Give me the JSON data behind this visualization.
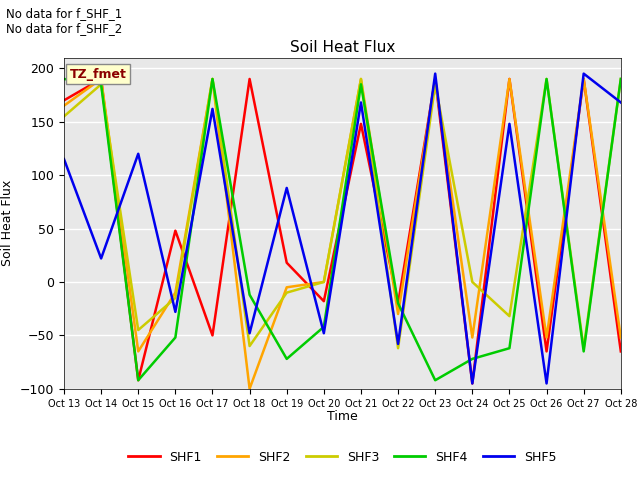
{
  "title": "Soil Heat Flux",
  "ylabel": "Soil Heat Flux",
  "xlabel": "Time",
  "annotations": [
    "No data for f_SHF_1",
    "No data for f_SHF_2"
  ],
  "legend_label": "TZ_fmet",
  "ylim": [
    -100,
    210
  ],
  "yticks": [
    -100,
    -50,
    0,
    50,
    100,
    150,
    200
  ],
  "colors": {
    "SHF1": "#FF0000",
    "SHF2": "#FFA500",
    "SHF3": "#CCCC00",
    "SHF4": "#00CC00",
    "SHF5": "#0000EE"
  },
  "x_labels": [
    "Oct 13",
    "Oct 14",
    "Oct 15",
    "Oct 16",
    "Oct 17",
    "Oct 18",
    "Oct 19",
    "Oct 20",
    "Oct 21",
    "Oct 22",
    "Oct 23",
    "Oct 24",
    "Oct 25",
    "Oct 26",
    "Oct 27",
    "Oct 28"
  ],
  "x_values": [
    13,
    14,
    15,
    16,
    17,
    18,
    19,
    20,
    21,
    22,
    23,
    24,
    25,
    26,
    27,
    28
  ],
  "SHF1": [
    170,
    190,
    -92,
    48,
    -50,
    190,
    18,
    -18,
    148,
    -20,
    190,
    -95,
    190,
    -65,
    190,
    -65
  ],
  "SHF2": [
    165,
    190,
    -65,
    -10,
    190,
    -100,
    -5,
    0,
    190,
    -30,
    190,
    -52,
    190,
    -52,
    190,
    -52
  ],
  "SHF3": [
    155,
    185,
    -45,
    -15,
    190,
    -60,
    -10,
    0,
    190,
    -62,
    185,
    0,
    -32,
    190,
    -62,
    190
  ],
  "SHF4": [
    190,
    185,
    -92,
    -52,
    190,
    -12,
    -72,
    -42,
    185,
    -20,
    -92,
    -72,
    -62,
    190,
    -65,
    190
  ],
  "SHF5": [
    115,
    22,
    120,
    -28,
    162,
    -48,
    88,
    -48,
    168,
    -58,
    195,
    -95,
    148,
    -95,
    195,
    168
  ],
  "bg_color": "#E8E8E8",
  "linewidth": 1.8,
  "figsize": [
    6.4,
    4.8
  ],
  "dpi": 100
}
